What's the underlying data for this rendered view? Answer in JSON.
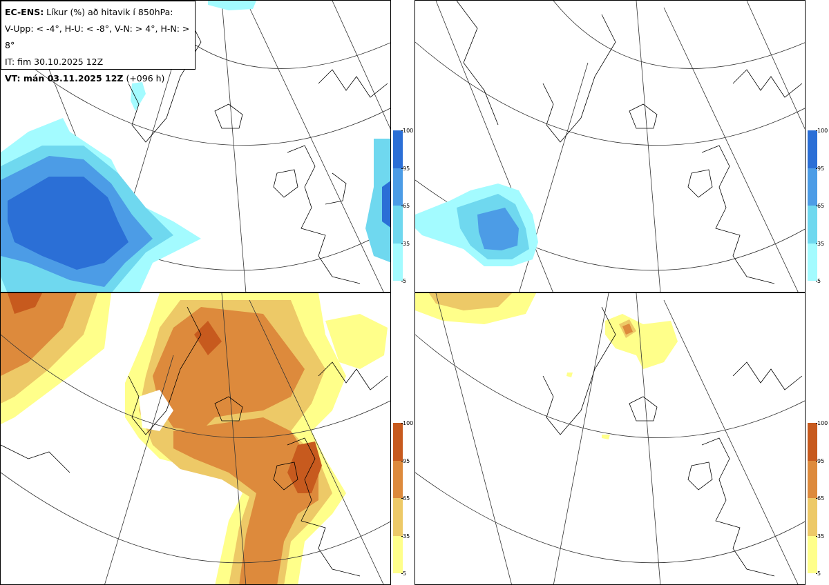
{
  "legend": {
    "line1_bold": "EC-ENS:",
    "line1_rest": " Líkur (%) að hitavik í 850hPa:",
    "line2": "V-Upp: < -4°, H-U: < -8°, V-N: > 4°, H-N: > 8°",
    "line3": "IT: fim 30.10.2025 12Z",
    "line4_bold": "VT: mán 03.11.2025 12Z",
    "line4_rest": " (+096 h)"
  },
  "colorbars": {
    "cold": {
      "ticks": [
        "100",
        "95",
        "65",
        "35",
        "5"
      ],
      "colors": [
        "#2b6fd6",
        "#4c9ce6",
        "#6fd8ef",
        "#a3fbff"
      ]
    },
    "warm": {
      "ticks": [
        "100",
        "95",
        "65",
        "35",
        "5"
      ],
      "colors": [
        "#c75a1e",
        "#dd8a3c",
        "#edc967",
        "#ffff8a"
      ]
    }
  },
  "panels": [
    {
      "id": "top-left",
      "variable": "V-Upp"
    },
    {
      "id": "top-right",
      "variable": "H-U"
    },
    {
      "id": "bottom-left",
      "variable": "V-N"
    },
    {
      "id": "bottom-right",
      "variable": "H-N"
    }
  ]
}
